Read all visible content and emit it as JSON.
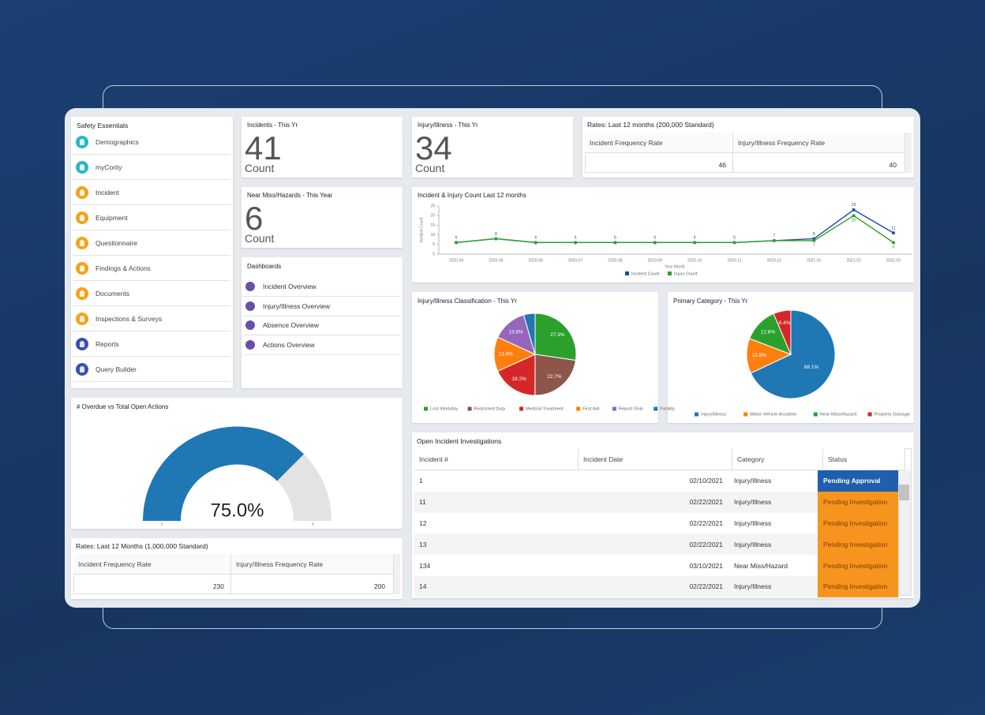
{
  "safety_essentials": {
    "title": "Safety Essentials",
    "items": [
      {
        "label": "Demographics",
        "color": "#2bb6c9"
      },
      {
        "label": "myCority",
        "color": "#2bb6c9"
      },
      {
        "label": "Incident",
        "color": "#f4a21b"
      },
      {
        "label": "Equipment",
        "color": "#f4a21b"
      },
      {
        "label": "Questionnaire",
        "color": "#f4a21b"
      },
      {
        "label": "Findings & Actions",
        "color": "#f4a21b"
      },
      {
        "label": "Documents",
        "color": "#f4a21b"
      },
      {
        "label": "Inspections & Surveys",
        "color": "#f4a21b"
      },
      {
        "label": "Reports",
        "color": "#3a4fb0"
      },
      {
        "label": "Query Builder",
        "color": "#3a4fb0"
      }
    ]
  },
  "incidents": {
    "title": "Incidents - This Yr",
    "value": 41,
    "unit": "Count"
  },
  "near_miss": {
    "title": "Near Miss/Hazards - This Year",
    "value": 6,
    "unit": "Count"
  },
  "injury": {
    "title": "Injury/Illness - This Yr",
    "value": 34,
    "unit": "Count"
  },
  "dashboards": {
    "title": "Dashboards",
    "items": [
      "Incident Overview",
      "Injury/Illness Overview",
      "Absence Overview",
      "Actions Overview"
    ]
  },
  "rates_200k": {
    "title": "Rates: Last 12 months (200,000 Standard)",
    "headers": [
      "Incident Frequency Rate",
      "Injury/Illness Frequency Rate"
    ],
    "values": [
      46,
      40
    ]
  },
  "rates_1m": {
    "title": "Rates: Last 12 Months (1,000,000 Standard)",
    "headers": [
      "Incident Frequency Rate",
      "Injury/Illness Frequency Rate"
    ],
    "values": [
      230,
      200
    ]
  },
  "investigations": {
    "title": "Open Incident Investigations",
    "headers": [
      "Incident #",
      "Incident Date",
      "Category",
      "Status"
    ],
    "rows": [
      {
        "cells": [
          "1",
          "02/10/2021",
          "Injury/Illness",
          "Pending Approval"
        ],
        "color": "#1f5fad",
        "text_color": "#ffffff"
      },
      {
        "cells": [
          "11",
          "02/22/2021",
          "Injury/Illness",
          "Pending Investigation"
        ],
        "color": "#f7941d",
        "text_color": "#7a3f00"
      },
      {
        "cells": [
          "12",
          "02/22/2021",
          "Injury/Illness",
          "Pending Investigation"
        ],
        "color": "#f7941d",
        "text_color": "#7a3f00"
      },
      {
        "cells": [
          "13",
          "02/22/2021",
          "Injury/Illness",
          "Pending Investigation"
        ],
        "color": "#f7941d",
        "text_color": "#7a3f00"
      },
      {
        "cells": [
          "134",
          "03/10/2021",
          "Near Miss/Hazard",
          "Pending Investigation"
        ],
        "color": "#f7941d",
        "text_color": "#7a3f00"
      },
      {
        "cells": [
          "14",
          "02/22/2021",
          "Injury/Illness",
          "Pending Investigation"
        ],
        "color": "#f7941d",
        "text_color": "#7a3f00"
      }
    ]
  },
  "chart_data": [
    {
      "type": "line",
      "title": "Incident & Injury Count Last 12 months",
      "x_label": "Year Month",
      "y_label": "Incident Count",
      "categories": [
        "2020-04",
        "2020-05",
        "2020-06",
        "2020-07",
        "2020-08",
        "2020-09",
        "2020-10",
        "2020-11",
        "2020-12",
        "2021-01",
        "2021-02",
        "2021-03"
      ],
      "series": [
        {
          "name": "Incident Count",
          "color": "#1f4e9c",
          "values": [
            6,
            8,
            6,
            6,
            6,
            6,
            6,
            6,
            7,
            8,
            23,
            11
          ]
        },
        {
          "name": "Injury Count",
          "color": "#2ca02c",
          "values": [
            6,
            8,
            6,
            6,
            6,
            6,
            6,
            6,
            7,
            7,
            20,
            6
          ]
        }
      ],
      "ylim": [
        0,
        25
      ],
      "yticks": [
        0,
        5,
        10,
        15,
        20,
        25
      ],
      "legend": "bottom"
    },
    {
      "type": "pie",
      "title": "Injury/Illness Classification - This Yr",
      "categories": [
        "Lost Workday",
        "Restricted Duty",
        "Medical Treatment",
        "First Aid",
        "Report Only",
        "Fatality"
      ],
      "values": [
        27.3,
        22.7,
        18.2,
        13.6,
        13.6,
        4.5
      ],
      "value_labels": [
        "27.3%",
        "22.7%",
        "18.2%",
        "13.6%",
        "13.6%",
        null
      ],
      "colors": [
        "#2ca02c",
        "#8c564b",
        "#d62728",
        "#ff7f0e",
        "#9467bd",
        "#1f77b4"
      ],
      "legend": "bottom"
    },
    {
      "type": "pie",
      "title": "Primary Category - This Yr",
      "categories": [
        "Injury/Illness",
        "Motor Vehicle Accident",
        "Near Miss/Hazard",
        "Property Damage"
      ],
      "values": [
        68.1,
        12.8,
        12.8,
        6.4
      ],
      "value_labels": [
        "68.1%",
        "12.8%",
        "12.8%",
        "6.4%"
      ],
      "colors": [
        "#1f77b4",
        "#ff7f0e",
        "#2ca02c",
        "#d62728"
      ],
      "legend": "bottom"
    },
    {
      "type": "gauge",
      "title": "# Overdue vs Total Open Actions",
      "values": [
        3
      ],
      "value_labels": [
        "75.0%"
      ],
      "ylim": [
        0,
        4
      ],
      "yticks": [
        0,
        4
      ],
      "colors": [
        "#1f77b4",
        "#e3e3e3"
      ]
    }
  ]
}
